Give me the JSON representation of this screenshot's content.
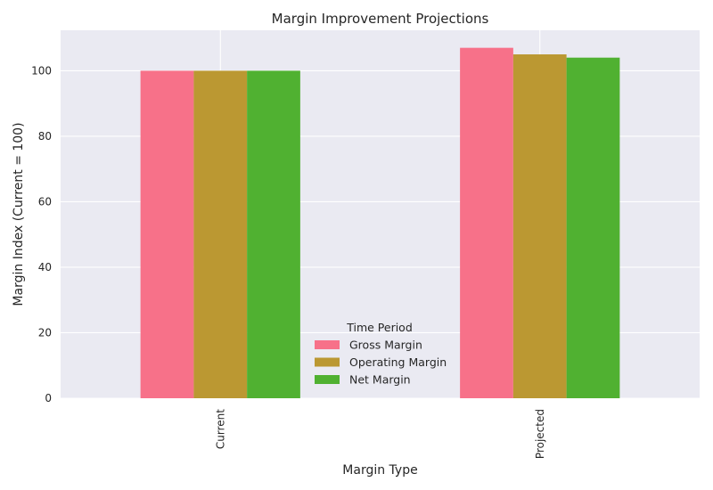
{
  "chart_data": {
    "type": "bar",
    "title": "Margin Improvement Projections",
    "xlabel": "Margin Type",
    "ylabel": "Margin Index (Current = 100)",
    "categories": [
      "Current",
      "Projected"
    ],
    "series": [
      {
        "name": "Gross Margin",
        "values": [
          100,
          107
        ],
        "color": "#f77189"
      },
      {
        "name": "Operating Margin",
        "values": [
          100,
          105
        ],
        "color": "#bb9832"
      },
      {
        "name": "Net Margin",
        "values": [
          100,
          104
        ],
        "color": "#50b131"
      }
    ],
    "ylim": [
      0,
      112.35
    ],
    "yticks": [
      0,
      20,
      40,
      60,
      80,
      100
    ],
    "legend": {
      "title": "Time Period",
      "placement": "lower-center"
    },
    "grid": true,
    "background": "#eaeaf2"
  }
}
